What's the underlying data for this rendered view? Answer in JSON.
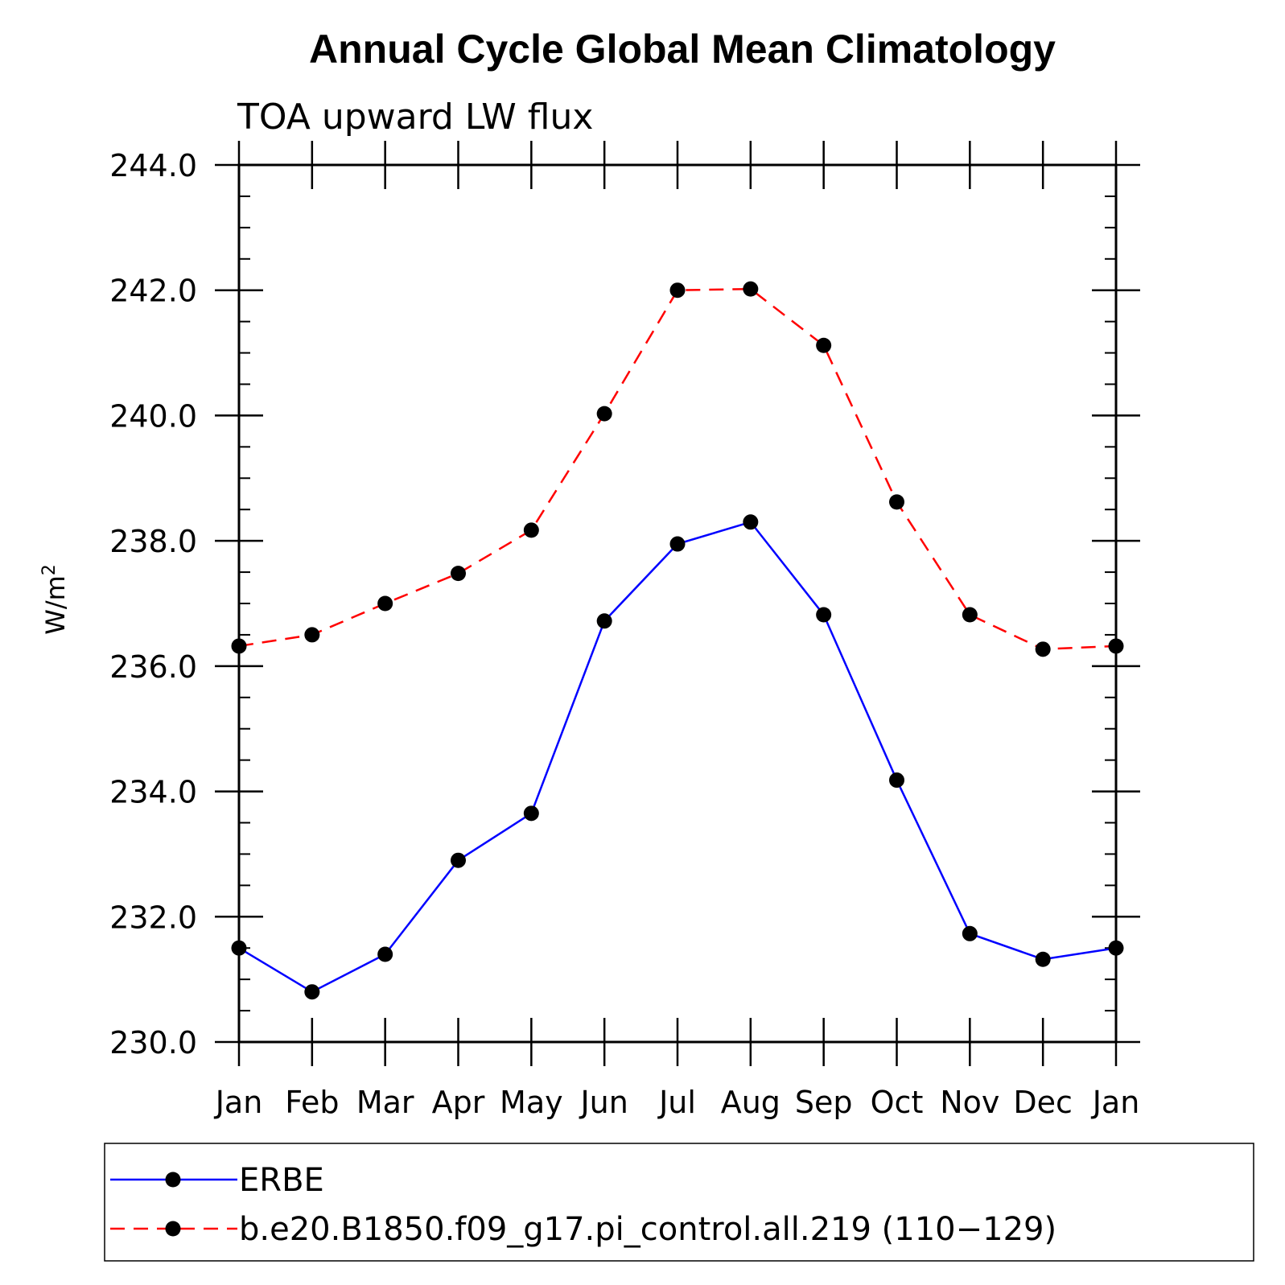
{
  "chart_data": {
    "type": "line",
    "title": "Annual Cycle Global Mean Climatology",
    "subtitle": "TOA upward LW flux",
    "xlabel": "",
    "ylabel": "W/m",
    "ylabel_sup": "2",
    "categories": [
      "Jan",
      "Feb",
      "Mar",
      "Apr",
      "May",
      "Jun",
      "Jul",
      "Aug",
      "Sep",
      "Oct",
      "Nov",
      "Dec",
      "Jan"
    ],
    "ylim": [
      230.0,
      244.0
    ],
    "yticks": [
      "230.0",
      "232.0",
      "234.0",
      "236.0",
      "238.0",
      "240.0",
      "242.0",
      "244.0"
    ],
    "legend_position": "bottom",
    "series": [
      {
        "name": "ERBE",
        "color": "#0000ff",
        "style": "solid",
        "values": [
          231.5,
          230.8,
          231.4,
          232.9,
          233.65,
          236.72,
          237.95,
          238.3,
          236.82,
          234.18,
          231.73,
          231.32,
          231.5
        ]
      },
      {
        "name": "b.e20.B1850.f09_g17.pi_control.all.219 (110−129)",
        "color": "#ff0000",
        "style": "dashed",
        "values": [
          236.32,
          236.5,
          237.0,
          237.48,
          238.17,
          240.03,
          242.0,
          242.02,
          241.12,
          238.62,
          236.82,
          236.27,
          236.32
        ]
      }
    ]
  }
}
